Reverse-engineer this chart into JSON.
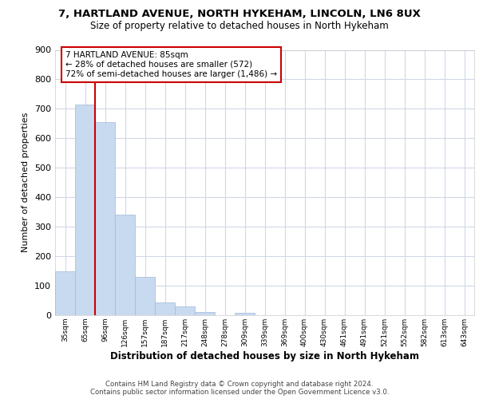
{
  "title1": "7, HARTLAND AVENUE, NORTH HYKEHAM, LINCOLN, LN6 8UX",
  "title2": "Size of property relative to detached houses in North Hykeham",
  "xlabel": "Distribution of detached houses by size in North Hykeham",
  "ylabel": "Number of detached properties",
  "categories": [
    "35sqm",
    "65sqm",
    "96sqm",
    "126sqm",
    "157sqm",
    "187sqm",
    "217sqm",
    "248sqm",
    "278sqm",
    "309sqm",
    "339sqm",
    "369sqm",
    "400sqm",
    "430sqm",
    "461sqm",
    "491sqm",
    "521sqm",
    "552sqm",
    "582sqm",
    "613sqm",
    "643sqm"
  ],
  "values": [
    150,
    715,
    655,
    340,
    130,
    42,
    30,
    12,
    0,
    8,
    0,
    0,
    0,
    0,
    0,
    0,
    0,
    0,
    0,
    0,
    0
  ],
  "bar_color": "#c8daf0",
  "bar_edge_color": "#a0b8d8",
  "property_line_x": 1.5,
  "property_line_color": "#cc0000",
  "annotation_text": "7 HARTLAND AVENUE: 85sqm\n← 28% of detached houses are smaller (572)\n72% of semi-detached houses are larger (1,486) →",
  "annotation_box_color": "#cc0000",
  "ylim": [
    0,
    900
  ],
  "yticks": [
    0,
    100,
    200,
    300,
    400,
    500,
    600,
    700,
    800,
    900
  ],
  "footer": "Contains HM Land Registry data © Crown copyright and database right 2024.\nContains public sector information licensed under the Open Government Licence v3.0.",
  "bg_color": "#ffffff",
  "plot_bg_color": "#ffffff",
  "grid_color": "#d0d8e8"
}
